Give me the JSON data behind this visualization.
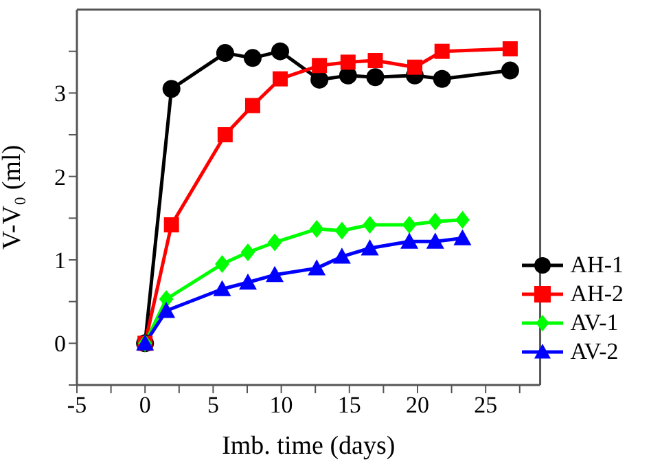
{
  "chart_data": {
    "type": "line",
    "xlabel": "Imb. time (days)",
    "ylabel": "V-V₀ (ml)",
    "xlim": [
      -5,
      29
    ],
    "xticks": [
      -5,
      {
        "value": -2.5,
        "label": null
      },
      0,
      {
        "value": 2.5,
        "label": null
      },
      5,
      {
        "value": 7.5,
        "label": null
      },
      10,
      {
        "value": 12.5,
        "label": null
      },
      15,
      {
        "value": 17.5,
        "label": null
      },
      20,
      {
        "value": 22.5,
        "label": null
      },
      25,
      {
        "value": 27.5,
        "label": null
      }
    ],
    "ylim": [
      -0.5,
      4
    ],
    "yticks": [
      {
        "value": -0.5,
        "label": null
      },
      0,
      {
        "value": 0.5,
        "label": null
      },
      1,
      {
        "value": 1.5,
        "label": null
      },
      2,
      {
        "value": 2.5,
        "label": null
      },
      3,
      {
        "value": 3.5,
        "label": null
      }
    ],
    "grid": false,
    "legend": "bottom right",
    "line_style": "solid",
    "series": [
      {
        "name": "AH-1",
        "color": "#000000",
        "marker": "circle",
        "x": [
          0,
          1.94,
          5.88,
          7.9,
          9.92,
          12.8,
          14.9,
          16.9,
          19.8,
          21.8,
          26.8
        ],
        "values": [
          0,
          3.05,
          3.48,
          3.42,
          3.5,
          3.16,
          3.21,
          3.19,
          3.21,
          3.17,
          3.27
        ]
      },
      {
        "name": "AH-2",
        "color": "#ff0000",
        "marker": "square",
        "x": [
          0,
          1.94,
          5.88,
          7.9,
          9.92,
          12.8,
          14.9,
          16.9,
          19.8,
          21.8,
          26.8
        ],
        "values": [
          0,
          1.42,
          2.5,
          2.85,
          3.17,
          3.33,
          3.37,
          3.39,
          3.31,
          3.5,
          3.53
        ]
      },
      {
        "name": "AV-1",
        "color": "#00ff00",
        "marker": "diamond",
        "x": [
          0,
          1.56,
          5.66,
          7.55,
          9.52,
          12.6,
          14.45,
          16.5,
          19.4,
          21.3,
          23.3
        ],
        "values": [
          0,
          0.53,
          0.95,
          1.09,
          1.21,
          1.37,
          1.35,
          1.42,
          1.42,
          1.46,
          1.48
        ]
      },
      {
        "name": "AV-2",
        "color": "#0000ff",
        "marker": "triangle",
        "x": [
          0,
          1.56,
          5.66,
          7.55,
          9.52,
          12.6,
          14.45,
          16.5,
          19.4,
          21.3,
          23.3
        ],
        "values": [
          0,
          0.39,
          0.65,
          0.73,
          0.82,
          0.9,
          1.04,
          1.14,
          1.22,
          1.22,
          1.26
        ]
      }
    ]
  }
}
